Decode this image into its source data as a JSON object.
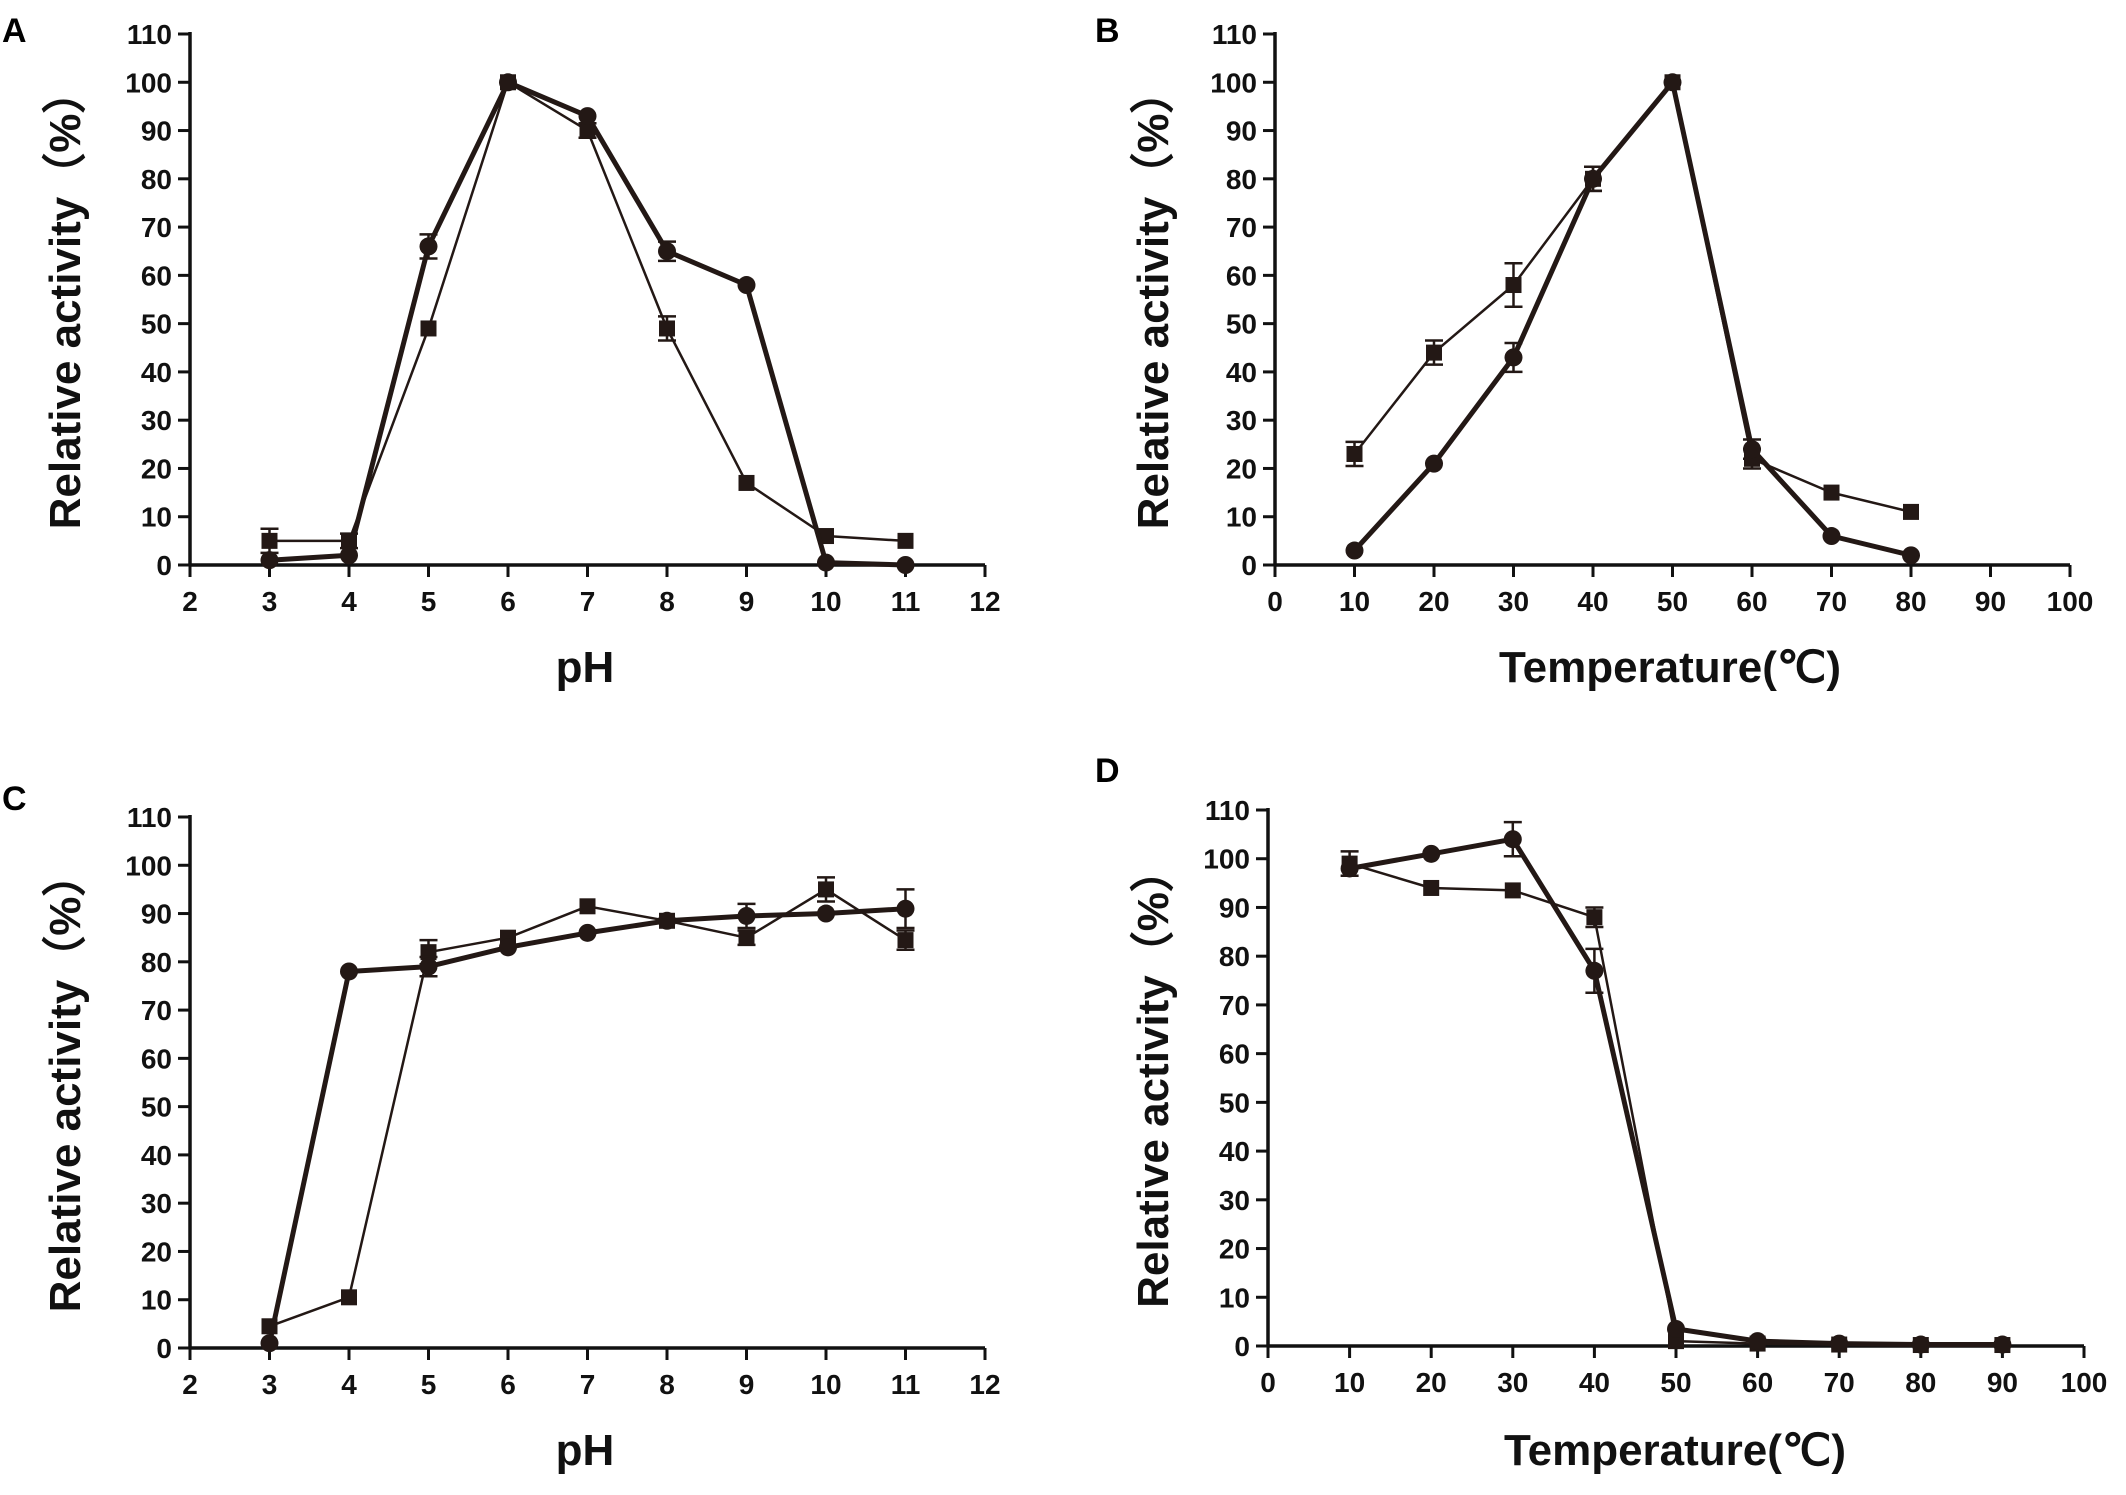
{
  "chart_data": [
    {
      "panel": "A",
      "type": "line",
      "xlabel": "pH",
      "ylabel": "Relative activity（%）",
      "xlim": [
        2,
        12
      ],
      "ylim": [
        0,
        110
      ],
      "xticks": [
        "2",
        "3",
        "4",
        "5",
        "6",
        "7",
        "8",
        "9",
        "10",
        "11",
        "12"
      ],
      "yticks": [
        "0",
        "10",
        "20",
        "30",
        "40",
        "50",
        "60",
        "70",
        "80",
        "90",
        "100",
        "110"
      ],
      "series": [
        {
          "name": "circle",
          "marker": "circle",
          "x": [
            3,
            4,
            5,
            6,
            7,
            8,
            9,
            10,
            11
          ],
          "values": [
            1,
            2,
            66,
            100,
            93,
            65,
            58,
            0.5,
            0
          ],
          "errors": [
            0,
            0,
            2.5,
            0,
            0,
            2,
            0,
            0,
            0
          ]
        },
        {
          "name": "square",
          "marker": "square",
          "x": [
            3,
            4,
            5,
            6,
            7,
            8,
            9,
            10,
            11
          ],
          "values": [
            5,
            5,
            49,
            100,
            90,
            49,
            17,
            6,
            5
          ],
          "errors": [
            2.5,
            1.5,
            0,
            0,
            1.5,
            2.5,
            0,
            0,
            0
          ]
        }
      ]
    },
    {
      "panel": "B",
      "type": "line",
      "xlabel": "Temperature(℃)",
      "ylabel": "Relative activity（%）",
      "xlim": [
        0,
        100
      ],
      "ylim": [
        0,
        110
      ],
      "xticks": [
        "0",
        "10",
        "20",
        "30",
        "40",
        "50",
        "60",
        "70",
        "80",
        "90",
        "100"
      ],
      "yticks": [
        "0",
        "10",
        "20",
        "30",
        "40",
        "50",
        "60",
        "70",
        "80",
        "90",
        "100",
        "110"
      ],
      "series": [
        {
          "name": "circle",
          "marker": "circle",
          "x": [
            10,
            20,
            30,
            40,
            50,
            60,
            70,
            80
          ],
          "values": [
            3,
            21,
            43,
            80,
            100,
            24,
            6,
            2
          ],
          "errors": [
            0,
            0,
            3,
            2.5,
            0,
            2,
            0,
            0
          ]
        },
        {
          "name": "square",
          "marker": "square",
          "x": [
            10,
            20,
            30,
            40,
            50,
            60,
            70,
            80
          ],
          "values": [
            23,
            44,
            58,
            80,
            100,
            22,
            15,
            11
          ],
          "errors": [
            2.5,
            2.5,
            4.5,
            2.5,
            0,
            2,
            0,
            0
          ]
        }
      ]
    },
    {
      "panel": "C",
      "type": "line",
      "xlabel": "pH",
      "ylabel": "Relative activity（%）",
      "xlim": [
        2,
        12
      ],
      "ylim": [
        0,
        110
      ],
      "xticks": [
        "2",
        "3",
        "4",
        "5",
        "6",
        "7",
        "8",
        "9",
        "10",
        "11",
        "12"
      ],
      "yticks": [
        "0",
        "10",
        "20",
        "30",
        "40",
        "50",
        "60",
        "70",
        "80",
        "90",
        "100",
        "110"
      ],
      "series": [
        {
          "name": "circle",
          "marker": "circle",
          "x": [
            3,
            4,
            5,
            6,
            7,
            8,
            9,
            10,
            11
          ],
          "values": [
            1,
            78,
            79,
            83,
            86,
            88.5,
            89.5,
            90,
            91
          ],
          "errors": [
            0,
            0,
            2,
            0,
            0,
            0,
            2.5,
            0,
            4
          ]
        },
        {
          "name": "square",
          "marker": "square",
          "x": [
            3,
            4,
            5,
            6,
            7,
            8,
            9,
            10,
            11
          ],
          "values": [
            4.5,
            10.5,
            82,
            85,
            91.5,
            88.5,
            85,
            95,
            84.5
          ],
          "errors": [
            0,
            0,
            2.5,
            0,
            0,
            0,
            1.5,
            2.5,
            2
          ]
        }
      ]
    },
    {
      "panel": "D",
      "type": "line",
      "xlabel": "Temperature(℃)",
      "ylabel": "Relative activity（%）",
      "xlim": [
        0,
        100
      ],
      "ylim": [
        0,
        110
      ],
      "xticks": [
        "0",
        "10",
        "20",
        "30",
        "40",
        "50",
        "60",
        "70",
        "80",
        "90",
        "100"
      ],
      "yticks": [
        "0",
        "10",
        "20",
        "30",
        "40",
        "50",
        "60",
        "70",
        "80",
        "90",
        "100",
        "110"
      ],
      "series": [
        {
          "name": "circle",
          "marker": "circle",
          "x": [
            10,
            20,
            30,
            40,
            50,
            60,
            70,
            80,
            90
          ],
          "values": [
            98,
            101,
            104,
            77,
            3.5,
            1,
            0.5,
            0.3,
            0.3
          ],
          "errors": [
            0,
            0,
            3.5,
            4.5,
            0,
            0,
            0,
            0,
            0
          ]
        },
        {
          "name": "square",
          "marker": "square",
          "x": [
            10,
            20,
            30,
            40,
            50,
            60,
            70,
            80,
            90
          ],
          "values": [
            99,
            94,
            93.5,
            88,
            1,
            0.5,
            0.3,
            0.2,
            0.2
          ],
          "errors": [
            2.5,
            0,
            0,
            2,
            0,
            0,
            0,
            0,
            0
          ]
        }
      ]
    }
  ]
}
